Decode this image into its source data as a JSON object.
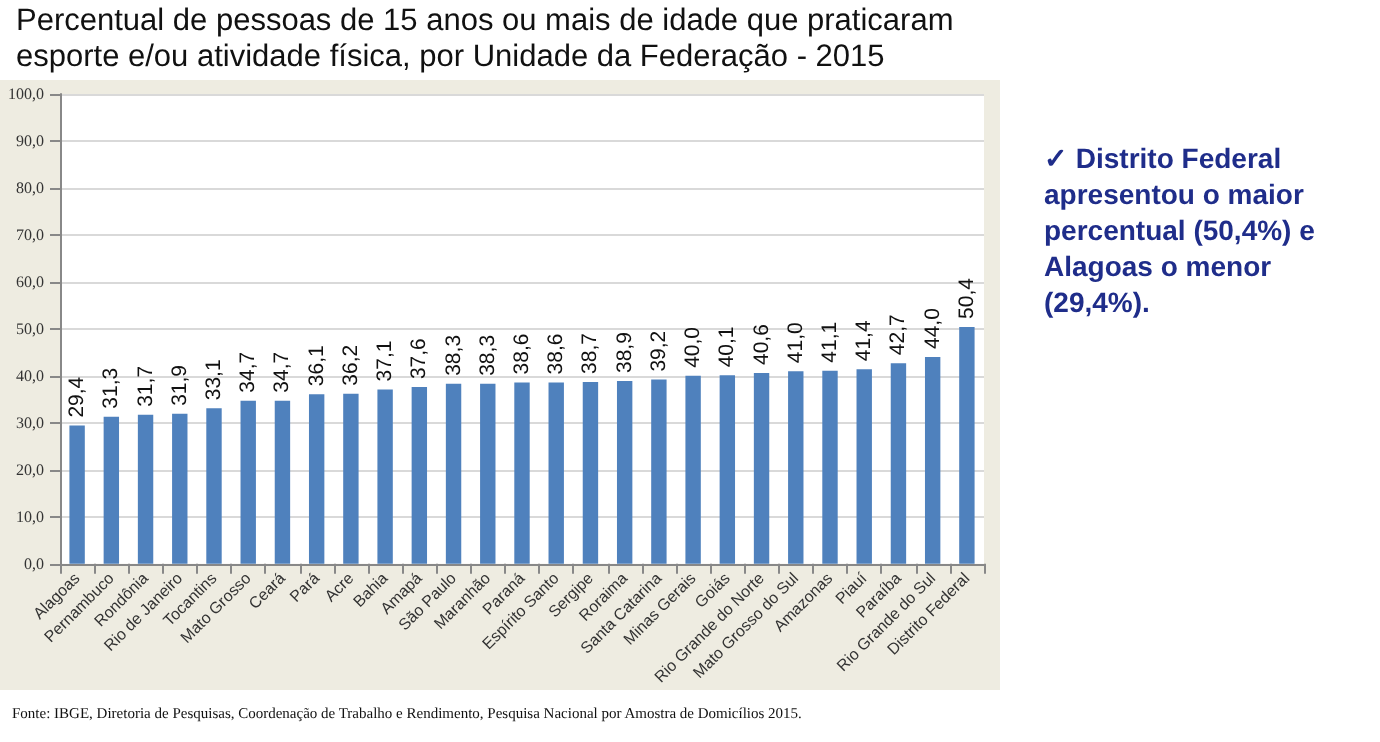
{
  "chart_data": {
    "type": "bar",
    "title": "Percentual de pessoas de 15 anos ou mais de idade que praticaram esporte e/ou atividade física, por Unidade da Federação - 2015",
    "categories": [
      "Alagoas",
      "Pernambuco",
      "Rondônia",
      "Rio de Janeiro",
      "Tocantins",
      "Mato Grosso",
      "Ceará",
      "Pará",
      "Acre",
      "Bahia",
      "Amapá",
      "São Paulo",
      "Maranhão",
      "Paraná",
      "Espírito Santo",
      "Sergipe",
      "Roraima",
      "Santa Catarina",
      "Minas Gerais",
      "Goiás",
      "Rio Grande do Norte",
      "Mato Grosso do Sul",
      "Amazonas",
      "Piauí",
      "Paraíba",
      "Rio Grande do Sul",
      "Distrito Federal"
    ],
    "values": [
      29.4,
      31.3,
      31.7,
      31.9,
      33.1,
      34.7,
      34.7,
      36.1,
      36.2,
      37.1,
      37.6,
      38.3,
      38.3,
      38.6,
      38.6,
      38.7,
      38.9,
      39.2,
      40.0,
      40.1,
      40.6,
      41.0,
      41.1,
      41.4,
      42.7,
      44.0,
      50.4
    ],
    "value_labels": [
      "29,4",
      "31,3",
      "31,7",
      "31,9",
      "33,1",
      "34,7",
      "34,7",
      "36,1",
      "36,2",
      "37,1",
      "37,6",
      "38,3",
      "38,3",
      "38,6",
      "38,6",
      "38,7",
      "38,9",
      "39,2",
      "40,0",
      "40,1",
      "40,6",
      "41,0",
      "41,1",
      "41,4",
      "42,7",
      "44,0",
      "50,4"
    ],
    "color": "#4f81bd",
    "ylim": [
      0,
      100
    ],
    "yticks": [
      {
        "value": 0,
        "label": "0,0"
      },
      {
        "value": 10,
        "label": "10,0"
      },
      {
        "value": 20,
        "label": "20,0"
      },
      {
        "value": 30,
        "label": "30,0"
      },
      {
        "value": 40,
        "label": "40,0"
      },
      {
        "value": 50,
        "label": "50,0"
      },
      {
        "value": 60,
        "label": "60,0"
      },
      {
        "value": 70,
        "label": "70,0"
      },
      {
        "value": 80,
        "label": "80,0"
      },
      {
        "value": 90,
        "label": "90,0"
      },
      {
        "value": 100,
        "label": "100,0"
      }
    ],
    "grid": "y",
    "annotations": [
      "✓ Distrito Federal apresentou o maior percentual (50,4%) e Alagoas o menor (29,4%).",
      "Fonte: IBGE, Diretoria de Pesquisas, Coordenação de Trabalho e Rendimento, Pesquisa Nacional por Amostra de Domicílios 2015."
    ]
  }
}
